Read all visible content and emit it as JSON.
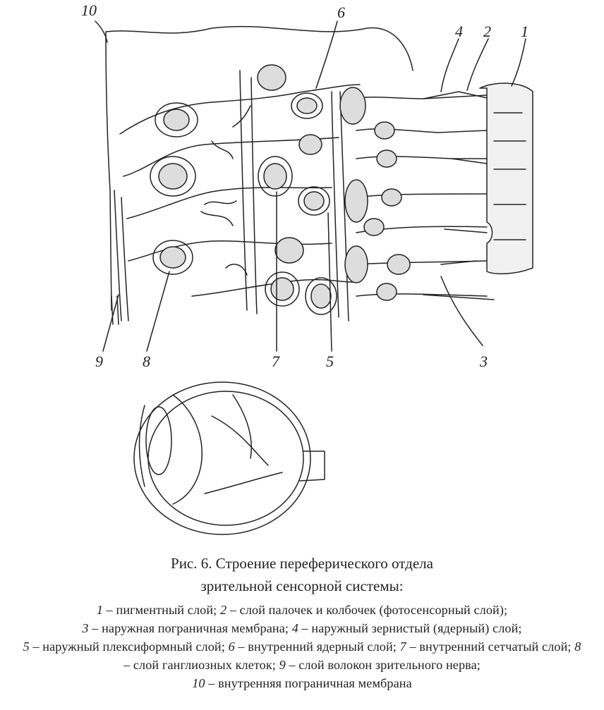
{
  "figure": {
    "labels": [
      "10",
      "6",
      "4",
      "2",
      "1",
      "9",
      "8",
      "7",
      "5",
      "3"
    ]
  },
  "caption": {
    "line1": "Рис. 6. Строение переферического отдела",
    "line2": "зрительной сенсорной системы:"
  },
  "legend": {
    "items": [
      {
        "num": "1",
        "text": " – пигментный слой; "
      },
      {
        "num": "2",
        "text": " – слой палочек и колбочек (фотосенсорный слой);"
      },
      {
        "num": "3",
        "text": " – наружная пограничная мембрана; "
      },
      {
        "num": "4",
        "text": " – наружный зернистый (ядерный) слой;"
      },
      {
        "num": "5",
        "text": " – наружный плексиформный слой; "
      },
      {
        "num": "6",
        "text": " – внутренний ядерный слой; "
      },
      {
        "num": "7",
        "text": " – внутренний сетчатый слой; "
      },
      {
        "num": "8",
        "text": " – слой ганглиозных клеток; "
      },
      {
        "num": "9",
        "text": " – слой волокон зрительного нерва;"
      },
      {
        "num": "10",
        "text": " – внутренняя пограничная мембрана"
      }
    ]
  }
}
